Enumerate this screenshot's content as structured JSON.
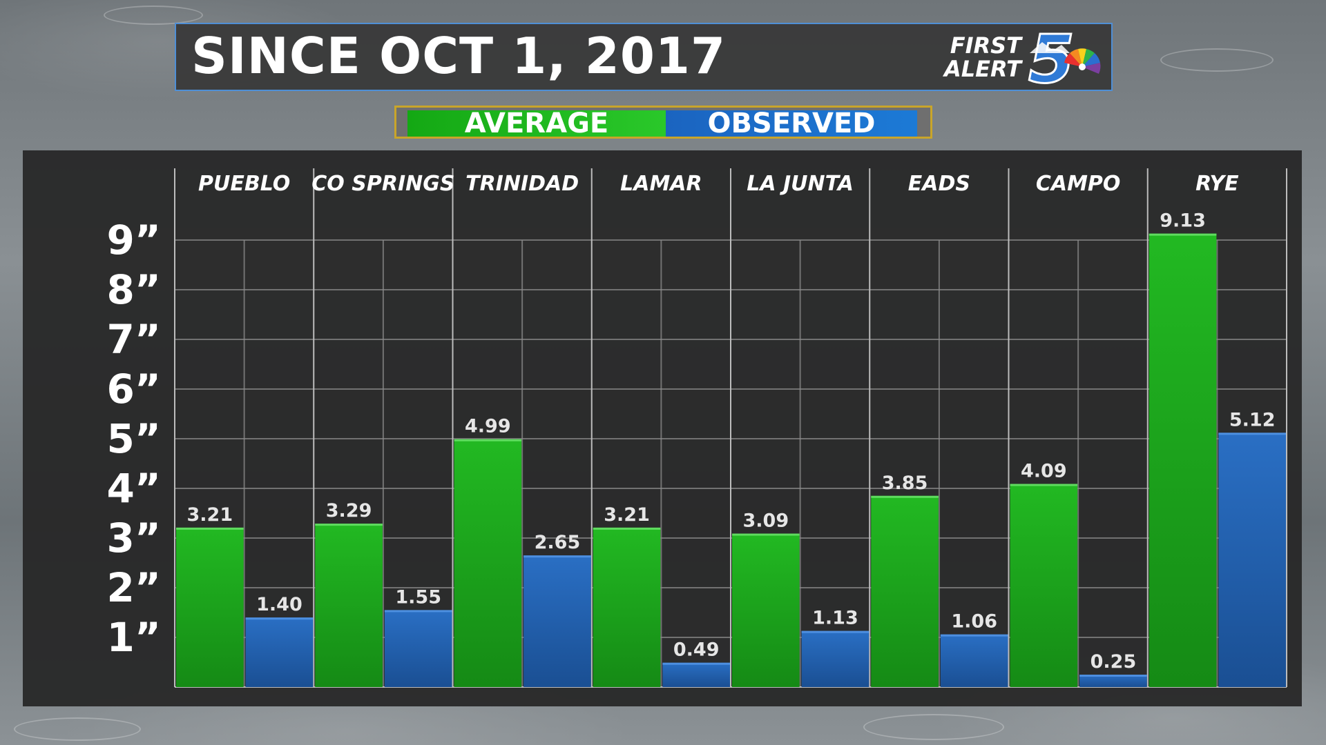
{
  "header": {
    "title": "SINCE OCT 1, 2017",
    "logo_text_line1": "FIRST",
    "logo_text_line2": "ALERT",
    "logo_number": "5"
  },
  "legend": {
    "average_label": "AVERAGE",
    "observed_label": "OBSERVED"
  },
  "colors": {
    "average": "#1fb41f",
    "observed": "#1f62b8",
    "frame": "#4f8fd6",
    "legend_border": "#c9a52a"
  },
  "chart_data": {
    "type": "bar",
    "title": "SINCE OCT 1, 2017",
    "categories": [
      "PUEBLO",
      "CO SPRINGS",
      "TRINIDAD",
      "LAMAR",
      "LA JUNTA",
      "EADS",
      "CAMPO",
      "RYE"
    ],
    "series": [
      {
        "name": "AVERAGE",
        "values": [
          3.21,
          3.29,
          4.99,
          3.21,
          3.09,
          3.85,
          4.09,
          9.13
        ]
      },
      {
        "name": "OBSERVED",
        "values": [
          1.4,
          1.55,
          2.65,
          0.49,
          1.13,
          1.06,
          0.25,
          5.12
        ]
      }
    ],
    "value_labels": {
      "AVERAGE": [
        "3.21",
        "3.29",
        "4.99",
        "3.21",
        "3.09",
        "3.85",
        "4.09",
        "9.13"
      ],
      "OBSERVED": [
        "1.40",
        "1.55",
        "2.65",
        "0.49",
        "1.13",
        "1.06",
        "0.25",
        "5.12"
      ]
    },
    "yticks": [
      1,
      2,
      3,
      4,
      5,
      6,
      7,
      8,
      9
    ],
    "ytick_labels": [
      "1”",
      "2”",
      "3”",
      "4”",
      "5”",
      "6”",
      "7”",
      "8”",
      "9”"
    ],
    "ylim": [
      0,
      9.3
    ],
    "grid": true,
    "legend_position": "top-center"
  }
}
